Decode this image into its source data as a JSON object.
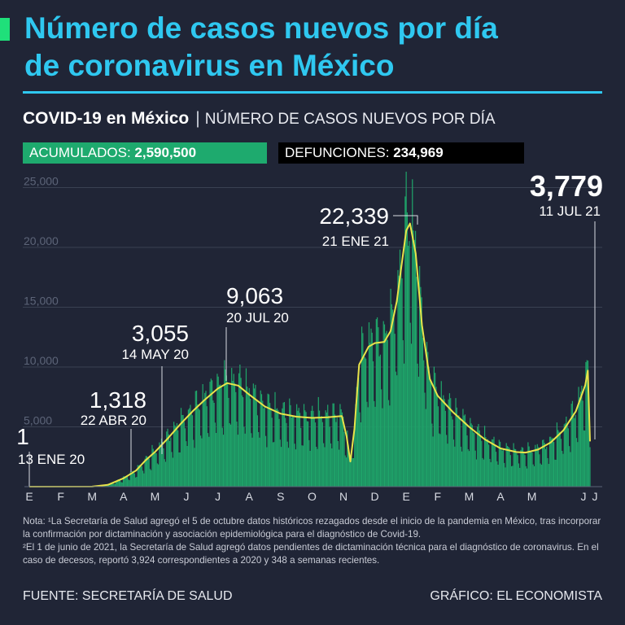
{
  "header": {
    "title_line1": "Número de casos nuevos por día",
    "title_line2": "de coronavirus en México",
    "subtitle_bold": "COVID-19 en México",
    "subtitle_separator": "|",
    "subtitle_rest": "NÚMERO DE CASOS NUEVOS POR DÍA"
  },
  "totals": {
    "acumulados_label": "ACUMULADOS:",
    "acumulados_value": "2,590,500",
    "defunciones_label": "DEFUNCIONES:",
    "defunciones_value": "234,969"
  },
  "colors": {
    "background": "#202536",
    "title": "#2fc8f0",
    "accent": "#1fe07a",
    "bars": "#1fa56a",
    "line": "#e9e44a",
    "acumulados_box": "#1eaa6e",
    "defunciones_box": "#000000"
  },
  "chart_data": {
    "type": "bar",
    "title": "NÚMERO DE CASOS NUEVOS POR DÍA",
    "y_ticks": [
      "25,000",
      "20,000",
      "15,000",
      "10,000",
      "5,000"
    ],
    "ylim": [
      0,
      25000
    ],
    "grid": true,
    "x_month_labels": [
      "E",
      "F",
      "M",
      "A",
      "M",
      "J",
      "J",
      "A",
      "S",
      "O",
      "N",
      "D",
      "E",
      "F",
      "M",
      "A",
      "M",
      "J",
      "J"
    ],
    "x_range_months": [
      0,
      18.36
    ],
    "smoothed_curve": [
      [
        0,
        0
      ],
      [
        2.0,
        10
      ],
      [
        2.5,
        150
      ],
      [
        3.0,
        700
      ],
      [
        3.4,
        1350
      ],
      [
        3.7,
        2200
      ],
      [
        4.0,
        2900
      ],
      [
        4.4,
        4000
      ],
      [
        4.8,
        5200
      ],
      [
        5.2,
        6300
      ],
      [
        5.6,
        7300
      ],
      [
        6.0,
        8200
      ],
      [
        6.3,
        8650
      ],
      [
        6.65,
        8450
      ],
      [
        7.0,
        7700
      ],
      [
        7.5,
        6700
      ],
      [
        8.0,
        6100
      ],
      [
        8.5,
        5850
      ],
      [
        9.0,
        5750
      ],
      [
        9.5,
        5800
      ],
      [
        9.95,
        5900
      ],
      [
        10.1,
        4200
      ],
      [
        10.22,
        2100
      ],
      [
        10.35,
        4800
      ],
      [
        10.5,
        10200
      ],
      [
        10.8,
        11700
      ],
      [
        11.0,
        12000
      ],
      [
        11.3,
        12100
      ],
      [
        11.5,
        13000
      ],
      [
        11.7,
        15500
      ],
      [
        11.85,
        18500
      ],
      [
        12.0,
        21400
      ],
      [
        12.12,
        22000
      ],
      [
        12.3,
        19500
      ],
      [
        12.5,
        13500
      ],
      [
        12.75,
        9000
      ],
      [
        13.0,
        7600
      ],
      [
        13.5,
        6200
      ],
      [
        14.0,
        5000
      ],
      [
        14.5,
        3950
      ],
      [
        15.0,
        3200
      ],
      [
        15.5,
        2900
      ],
      [
        15.8,
        2850
      ],
      [
        16.2,
        3100
      ],
      [
        16.6,
        3700
      ],
      [
        17.0,
        4700
      ],
      [
        17.4,
        6300
      ],
      [
        17.7,
        8500
      ],
      [
        17.78,
        9700
      ],
      [
        17.85,
        3779
      ]
    ],
    "annotations": [
      {
        "value": "1",
        "date": "13 ENE 20"
      },
      {
        "value": "1,318",
        "date": "22 ABR 20"
      },
      {
        "value": "3,055",
        "date": "14 MAY 20"
      },
      {
        "value": "9,063",
        "date": "20 JUL 20"
      },
      {
        "value": "22,339",
        "date": "21 ENE 21"
      },
      {
        "value": "3,779",
        "date": "11 JUL 21"
      }
    ]
  },
  "notes": {
    "line1": "Nota: ¹La Secretaría de Salud agregó el 5 de octubre datos históricos rezagados desde el inicio de la pandemia en México, tras incorporar la confirmación por dictaminación y asociación epidemiológica para el diagnóstico de Covid-19.",
    "line2": "²El 1 de junio de 2021, la Secretaría de Salud agregó datos pendientes de dictaminación técnica para el diagnóstico de coronavirus. En el caso de decesos, reportó 3,924 correspondientes a 2020 y 348 a semanas recientes."
  },
  "footer": {
    "source": "FUENTE: SECRETARÍA DE SALUD",
    "credit": "GRÁFICO: EL ECONOMISTA"
  }
}
